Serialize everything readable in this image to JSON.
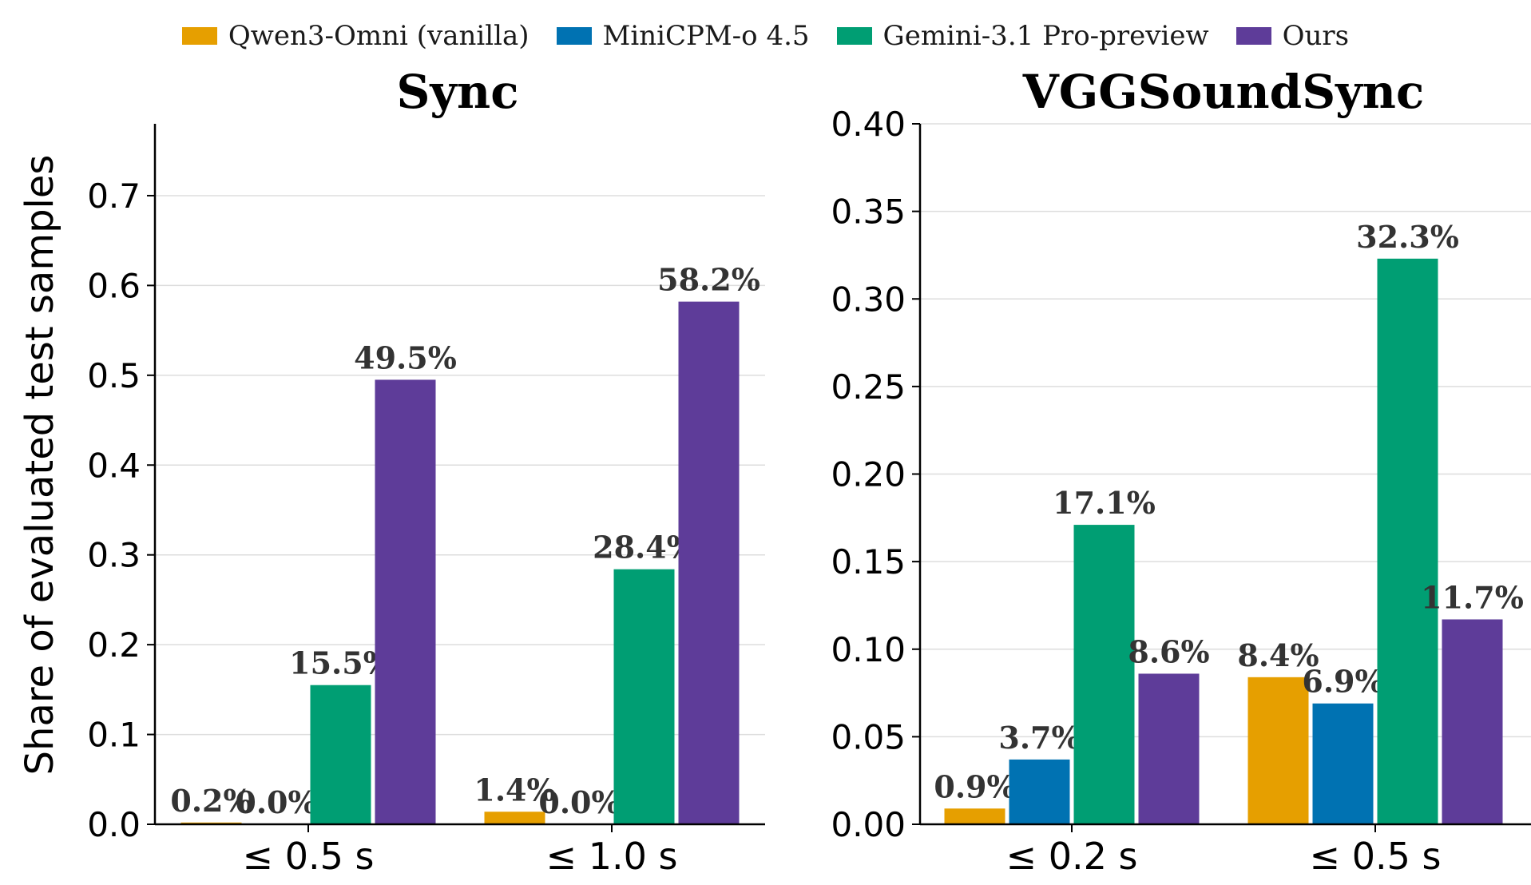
{
  "legend": [
    {
      "name": "Qwen3-Omni (vanilla)",
      "color": "#E69F00"
    },
    {
      "name": "MiniCPM-o 4.5",
      "color": "#0072B2"
    },
    {
      "name": "Gemini-3.1 Pro-preview",
      "color": "#009E73"
    },
    {
      "name": "Ours",
      "color": "#5E3C99"
    }
  ],
  "shared_ylabel": "Share of evaluated test samples",
  "chart_data": [
    {
      "type": "bar",
      "title": "Sync",
      "xlabel": "",
      "ylabel": "Share of evaluated test samples",
      "categories": [
        "≤ 0.5 s",
        "≤ 1.0 s"
      ],
      "ylim": [
        0,
        0.78
      ],
      "yticks": [
        0.0,
        0.1,
        0.2,
        0.3,
        0.4,
        0.5,
        0.6,
        0.7
      ],
      "ytick_labels": [
        "0.0",
        "0.1",
        "0.2",
        "0.3",
        "0.4",
        "0.5",
        "0.6",
        "0.7"
      ],
      "grid": true,
      "legend_placement": "top-center",
      "series": [
        {
          "name": "Qwen3-Omni (vanilla)",
          "color": "#E69F00",
          "values": [
            0.002,
            0.014
          ],
          "labels": [
            "0.2%",
            "1.4%"
          ]
        },
        {
          "name": "MiniCPM-o 4.5",
          "color": "#0072B2",
          "values": [
            0.0,
            0.0
          ],
          "labels": [
            "0.0%",
            "0.0%"
          ]
        },
        {
          "name": "Gemini-3.1 Pro-preview",
          "color": "#009E73",
          "values": [
            0.155,
            0.284
          ],
          "labels": [
            "15.5%",
            "28.4%"
          ]
        },
        {
          "name": "Ours",
          "color": "#5E3C99",
          "values": [
            0.495,
            0.582
          ],
          "labels": [
            "49.5%",
            "58.2%"
          ]
        }
      ]
    },
    {
      "type": "bar",
      "title": "VGGSoundSync",
      "xlabel": "",
      "ylabel": "",
      "categories": [
        "≤ 0.2 s",
        "≤ 0.5 s"
      ],
      "ylim": [
        0,
        0.4
      ],
      "yticks": [
        0.0,
        0.05,
        0.1,
        0.15,
        0.2,
        0.25,
        0.3,
        0.35,
        0.4
      ],
      "ytick_labels": [
        "0.00",
        "0.05",
        "0.10",
        "0.15",
        "0.20",
        "0.25",
        "0.30",
        "0.35",
        "0.40"
      ],
      "grid": true,
      "legend_placement": "top-center",
      "series": [
        {
          "name": "Qwen3-Omni (vanilla)",
          "color": "#E69F00",
          "values": [
            0.009,
            0.084
          ],
          "labels": [
            "0.9%",
            "8.4%"
          ]
        },
        {
          "name": "MiniCPM-o 4.5",
          "color": "#0072B2",
          "values": [
            0.037,
            0.069
          ],
          "labels": [
            "3.7%",
            "6.9%"
          ]
        },
        {
          "name": "Gemini-3.1 Pro-preview",
          "color": "#009E73",
          "values": [
            0.171,
            0.323
          ],
          "labels": [
            "17.1%",
            "32.3%"
          ]
        },
        {
          "name": "Ours",
          "color": "#5E3C99",
          "values": [
            0.086,
            0.117
          ],
          "labels": [
            "8.6%",
            "11.7%"
          ]
        }
      ]
    }
  ]
}
